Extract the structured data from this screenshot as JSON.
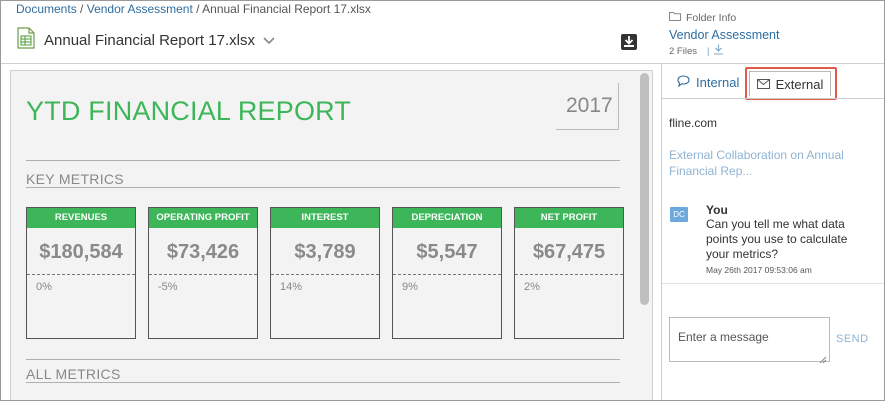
{
  "breadcrumb": {
    "items": [
      "Documents",
      "Vendor Assessment"
    ],
    "separator": "/",
    "current": "Annual Financial Report 17.xlsx"
  },
  "file": {
    "title": "Annual Financial Report 17.xlsx"
  },
  "folder_info": {
    "label": "Folder Info",
    "folder_name": "Vendor Assessment",
    "file_count": "2 Files",
    "pipe": "|"
  },
  "report": {
    "title": "YTD FINANCIAL REPORT",
    "year": "2017",
    "key_metrics_label": "KEY METRICS",
    "all_metrics_label": "ALL METRICS",
    "metrics": [
      {
        "name": "REVENUES",
        "value": "$180,584",
        "change": "0%"
      },
      {
        "name": "OPERATING PROFIT",
        "value": "$73,426",
        "change": "-5%"
      },
      {
        "name": "INTEREST",
        "value": "$3,789",
        "change": "14%"
      },
      {
        "name": "DEPRECIATION",
        "value": "$5,547",
        "change": "9%"
      },
      {
        "name": "NET PROFIT",
        "value": "$67,475",
        "change": "2%"
      }
    ]
  },
  "panel": {
    "tabs": [
      {
        "label": "Internal",
        "active": false
      },
      {
        "label": "External",
        "active": true
      }
    ],
    "domain": "fline.com",
    "collab_title": "External Collaboration on Annual Financial Rep...",
    "message": {
      "avatar": "DC",
      "author": "You",
      "text": "Can you tell me what data points you use to calculate your metrics?",
      "time": "May 26th 2017 09:53:06 am"
    },
    "compose": {
      "placeholder": "Enter a message",
      "send_label": "SEND"
    }
  },
  "colors": {
    "accent_green": "#3db65a",
    "link_blue": "#2f6d9f",
    "highlight_red": "#e05b4b"
  },
  "icons": [
    "spreadsheet-file-icon",
    "chevron-down-icon",
    "download-icon",
    "folder-icon",
    "download-small-icon",
    "chat-bubble-icon",
    "envelope-icon",
    "resize-grip-icon"
  ]
}
